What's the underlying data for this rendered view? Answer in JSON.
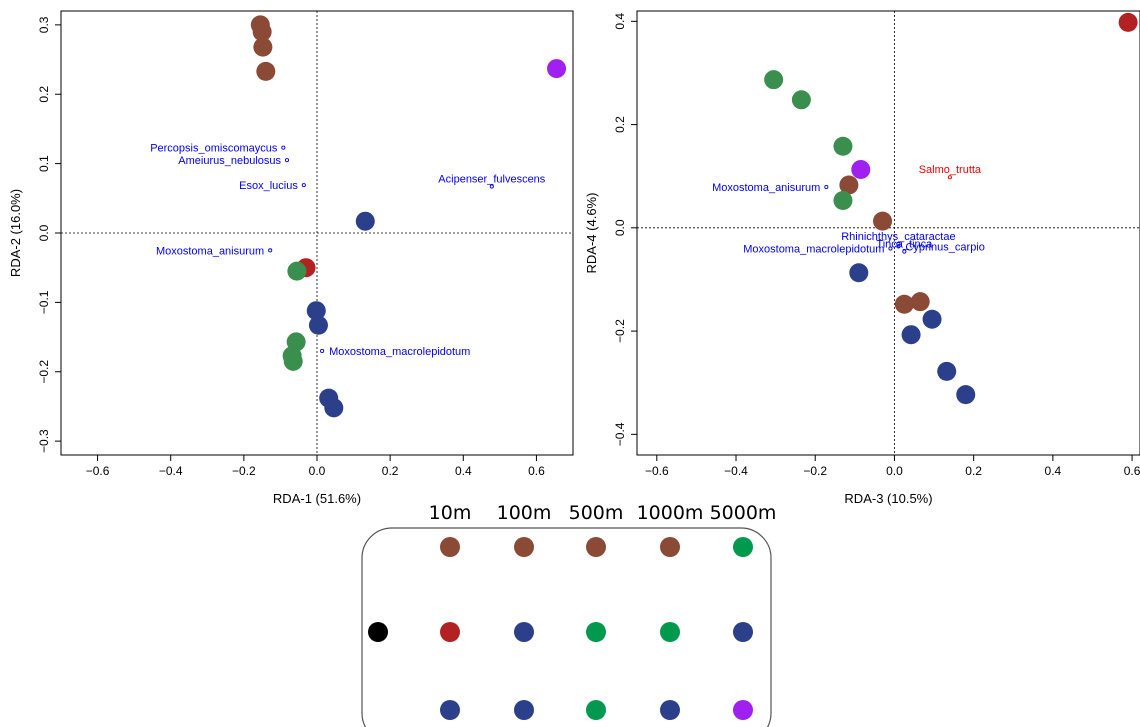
{
  "colors": {
    "brown": "#8B4A35",
    "red": "#B22222",
    "navy": "#2B3F8B",
    "green": "#3A8F4E",
    "green_legend": "#00994D",
    "purple": "#A020F0",
    "black": "#000000",
    "species_blue": "#0000EE",
    "species_red": "#EE0000"
  },
  "chart_data": [
    {
      "type": "scatter",
      "xlabel": "RDA-1 (51.6%)",
      "ylabel": "RDA-2 (16.0%)",
      "xlim": [
        -0.7,
        0.7
      ],
      "ylim": [
        -0.32,
        0.32
      ],
      "xticks": [
        "-0.6",
        "-0.4",
        "-0.2",
        "0.0",
        "0.2",
        "0.4",
        "0.6"
      ],
      "yticks": [
        "-0.3",
        "-0.2",
        "-0.1",
        "0.0",
        "0.1",
        "0.2",
        "0.3"
      ],
      "zero_lines": true,
      "sites": [
        {
          "x": -0.155,
          "y": 0.3,
          "color": "brown"
        },
        {
          "x": -0.15,
          "y": 0.29,
          "color": "brown"
        },
        {
          "x": -0.148,
          "y": 0.268,
          "color": "brown"
        },
        {
          "x": -0.14,
          "y": 0.233,
          "color": "brown"
        },
        {
          "x": 0.655,
          "y": 0.237,
          "color": "purple"
        },
        {
          "x": 0.132,
          "y": 0.017,
          "color": "navy"
        },
        {
          "x": -0.03,
          "y": -0.05,
          "color": "red"
        },
        {
          "x": -0.055,
          "y": -0.055,
          "color": "green"
        },
        {
          "x": -0.002,
          "y": -0.112,
          "color": "navy"
        },
        {
          "x": 0.004,
          "y": -0.133,
          "color": "navy"
        },
        {
          "x": -0.057,
          "y": -0.157,
          "color": "green"
        },
        {
          "x": -0.068,
          "y": -0.177,
          "color": "green"
        },
        {
          "x": -0.065,
          "y": -0.185,
          "color": "green"
        },
        {
          "x": 0.032,
          "y": -0.238,
          "color": "navy"
        },
        {
          "x": 0.046,
          "y": -0.252,
          "color": "navy"
        }
      ],
      "species": [
        {
          "label": "Percopsis_omiscomaycus",
          "x": -0.092,
          "y": 0.123,
          "color": "species_blue",
          "anchor": "end"
        },
        {
          "label": "Ameiurus_nebulosus",
          "x": -0.082,
          "y": 0.105,
          "color": "species_blue",
          "anchor": "end"
        },
        {
          "label": "Esox_lucius",
          "x": -0.036,
          "y": 0.069,
          "color": "species_blue",
          "anchor": "end"
        },
        {
          "label": "Acipenser_fulvescens",
          "x": 0.478,
          "y": 0.067,
          "color": "species_blue",
          "anchor": "middle"
        },
        {
          "label": "Moxostoma_anisurum",
          "x": -0.128,
          "y": -0.025,
          "color": "species_blue",
          "anchor": "end"
        },
        {
          "label": "Moxostoma_macrolepidotum",
          "x": 0.014,
          "y": -0.17,
          "color": "species_blue",
          "anchor": "start"
        }
      ]
    },
    {
      "type": "scatter",
      "xlabel": "RDA-3 (10.5%)",
      "ylabel": "RDA-4 (4.6%)",
      "xlim": [
        -0.65,
        0.62
      ],
      "ylim": [
        -0.44,
        0.42
      ],
      "xticks": [
        "-0.6",
        "-0.4",
        "-0.2",
        "0.0",
        "0.2",
        "0.4",
        "0.6"
      ],
      "yticks": [
        "-0.4",
        "-0.2",
        "0.0",
        "0.2",
        "0.4"
      ],
      "zero_lines": true,
      "sites": [
        {
          "x": 0.59,
          "y": 0.398,
          "color": "red"
        },
        {
          "x": -0.305,
          "y": 0.287,
          "color": "green"
        },
        {
          "x": -0.235,
          "y": 0.248,
          "color": "green"
        },
        {
          "x": -0.13,
          "y": 0.158,
          "color": "green"
        },
        {
          "x": -0.085,
          "y": 0.113,
          "color": "purple"
        },
        {
          "x": -0.115,
          "y": 0.083,
          "color": "brown"
        },
        {
          "x": -0.13,
          "y": 0.053,
          "color": "green"
        },
        {
          "x": -0.03,
          "y": 0.013,
          "color": "brown"
        },
        {
          "x": -0.09,
          "y": -0.087,
          "color": "navy"
        },
        {
          "x": 0.025,
          "y": -0.148,
          "color": "brown"
        },
        {
          "x": 0.065,
          "y": -0.143,
          "color": "brown"
        },
        {
          "x": 0.095,
          "y": -0.177,
          "color": "navy"
        },
        {
          "x": 0.042,
          "y": -0.207,
          "color": "navy"
        },
        {
          "x": 0.132,
          "y": -0.278,
          "color": "navy"
        },
        {
          "x": 0.18,
          "y": -0.323,
          "color": "navy"
        }
      ],
      "species": [
        {
          "label": "Salmo_trutta",
          "x": 0.14,
          "y": 0.098,
          "color": "species_red",
          "anchor": "middle"
        },
        {
          "label": "Moxostoma_anisurum",
          "x": -0.172,
          "y": 0.079,
          "color": "species_blue",
          "anchor": "end"
        },
        {
          "label": "Rhinichthys_cataractae",
          "x": 0.01,
          "y": -0.031,
          "color": "species_blue",
          "anchor": "middle"
        },
        {
          "label": "Moxostoma_macrolepidotum",
          "x": -0.01,
          "y": -0.04,
          "color": "species_blue",
          "anchor": "end"
        },
        {
          "label": "Cyprinus_carpio",
          "x": 0.01,
          "y": -0.036,
          "color": "species_blue",
          "anchor": "start"
        },
        {
          "label": "Tinca_tinca",
          "x": 0.025,
          "y": -0.046,
          "color": "species_blue",
          "anchor": "middle"
        }
      ]
    }
  ],
  "legend": {
    "headers": [
      "10m",
      "100m",
      "500m",
      "1000m",
      "5000m"
    ],
    "rows": [
      {
        "lead": null,
        "cells": [
          "brown",
          "brown",
          "brown",
          "brown",
          "green_legend"
        ]
      },
      {
        "lead": "black",
        "cells": [
          "red",
          "navy",
          "green_legend",
          "green_legend",
          "navy"
        ]
      },
      {
        "lead": null,
        "cells": [
          "navy",
          "navy",
          "green_legend",
          "navy",
          "purple"
        ]
      }
    ]
  }
}
